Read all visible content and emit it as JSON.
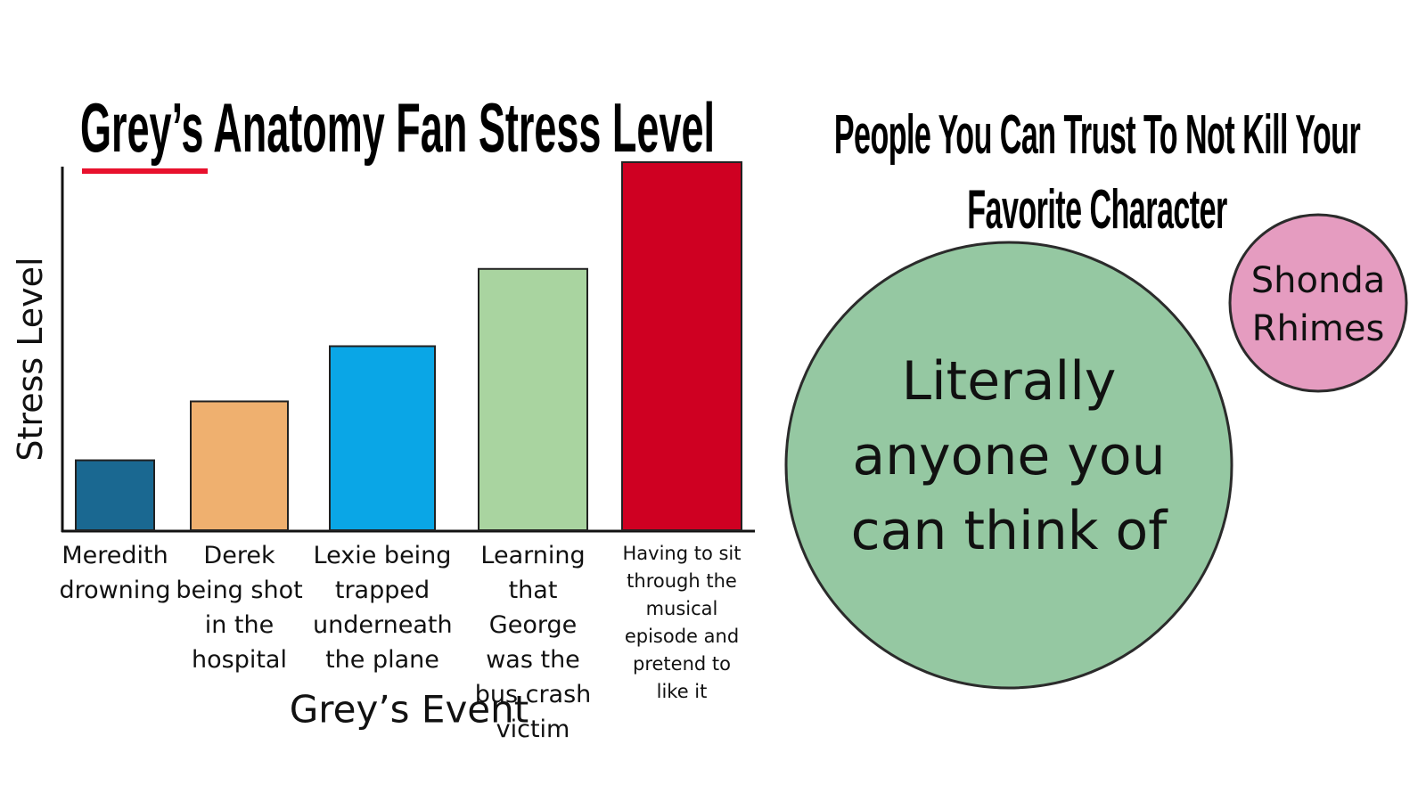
{
  "chart_data": {
    "type": "bar",
    "title": "Grey’s Anatomy Fan Stress Level",
    "x_label": "Grey’s Event",
    "y_label": "Stress Level",
    "categories": [
      "Meredith drowning",
      "Derek being shot in the hospital",
      "Lexie being trapped underneath the plane",
      "Learning that George was the bus crash victim",
      "Having to sit through the musical episode and pretend to like it"
    ],
    "values": [
      19,
      35,
      50,
      71,
      100
    ],
    "colors": [
      "#1a6891",
      "#efb06f",
      "#0aa6e6",
      "#a9d4a0",
      "#cf0022"
    ],
    "ylim": [
      0,
      100
    ]
  },
  "diagram": {
    "title": "People You Can Trust To Not Kill Your Favorite Character",
    "circles": [
      {
        "label": "Literally anyone you can think of",
        "color": "#95c8a2"
      },
      {
        "label": "Shonda Rhimes",
        "color": "#e59cc0"
      }
    ]
  }
}
